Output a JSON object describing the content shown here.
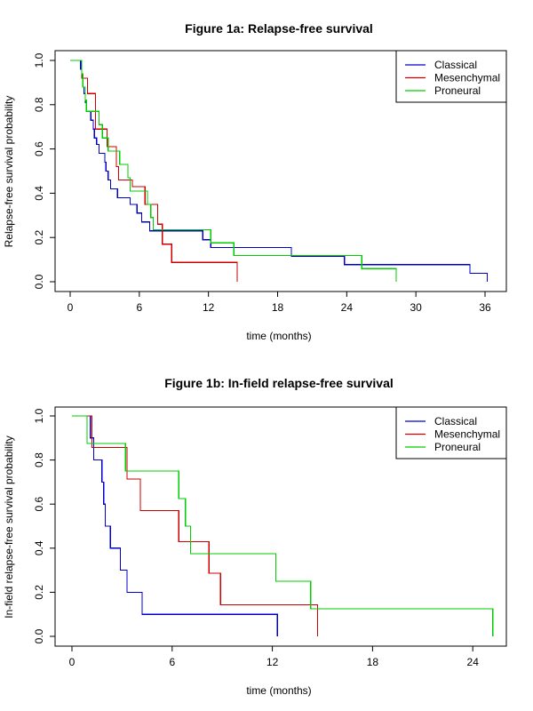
{
  "chart_data": [
    {
      "type": "line",
      "subtype": "kaplan-meier-step",
      "title": "Figure 1a: Relapse-free survival",
      "xlabel": "time (months)",
      "ylabel": "Relapse-free survival probability",
      "xlim": [
        0,
        36
      ],
      "ylim": [
        0,
        1
      ],
      "xticks": [
        0,
        6,
        12,
        18,
        24,
        30,
        36
      ],
      "yticks": [
        0.0,
        0.2,
        0.4,
        0.6,
        0.8,
        1.0
      ],
      "ytick_labels": [
        "0.0",
        "0.2",
        "0.4",
        "0.6",
        "0.8",
        "1.0"
      ],
      "legend_position": "top-right",
      "series": [
        {
          "name": "Classical",
          "color": "#0000CD",
          "points": [
            [
              0,
              1.0
            ],
            [
              0.9,
              1.0
            ],
            [
              0.9,
              0.96
            ],
            [
              1.0,
              0.96
            ],
            [
              1.0,
              0.92
            ],
            [
              1.1,
              0.92
            ],
            [
              1.1,
              0.88
            ],
            [
              1.2,
              0.88
            ],
            [
              1.2,
              0.85
            ],
            [
              1.3,
              0.85
            ],
            [
              1.3,
              0.81
            ],
            [
              1.4,
              0.81
            ],
            [
              1.4,
              0.77
            ],
            [
              1.8,
              0.77
            ],
            [
              1.8,
              0.73
            ],
            [
              2.0,
              0.73
            ],
            [
              2.0,
              0.69
            ],
            [
              2.1,
              0.69
            ],
            [
              2.1,
              0.65
            ],
            [
              2.3,
              0.65
            ],
            [
              2.3,
              0.62
            ],
            [
              2.5,
              0.62
            ],
            [
              2.5,
              0.58
            ],
            [
              3.0,
              0.58
            ],
            [
              3.0,
              0.54
            ],
            [
              3.1,
              0.54
            ],
            [
              3.1,
              0.5
            ],
            [
              3.3,
              0.5
            ],
            [
              3.3,
              0.46
            ],
            [
              3.5,
              0.46
            ],
            [
              3.5,
              0.42
            ],
            [
              4.1,
              0.42
            ],
            [
              4.1,
              0.38
            ],
            [
              5.2,
              0.38
            ],
            [
              5.2,
              0.35
            ],
            [
              5.8,
              0.35
            ],
            [
              5.8,
              0.31
            ],
            [
              6.2,
              0.31
            ],
            [
              6.2,
              0.27
            ],
            [
              6.9,
              0.27
            ],
            [
              6.9,
              0.23
            ],
            [
              11.5,
              0.23
            ],
            [
              11.5,
              0.19
            ],
            [
              12.2,
              0.19
            ],
            [
              12.2,
              0.155
            ],
            [
              19.2,
              0.155
            ],
            [
              19.2,
              0.115
            ],
            [
              23.8,
              0.115
            ],
            [
              23.8,
              0.077
            ],
            [
              34.7,
              0.077
            ],
            [
              34.7,
              0.038
            ],
            [
              36.2,
              0.038
            ],
            [
              36.2,
              0.0
            ]
          ]
        },
        {
          "name": "Mesenchymal",
          "color": "#CD0000",
          "points": [
            [
              0,
              1.0
            ],
            [
              1.0,
              1.0
            ],
            [
              1.0,
              0.92
            ],
            [
              1.5,
              0.92
            ],
            [
              1.5,
              0.85
            ],
            [
              2.2,
              0.85
            ],
            [
              2.2,
              0.69
            ],
            [
              3.2,
              0.69
            ],
            [
              3.2,
              0.61
            ],
            [
              4.0,
              0.61
            ],
            [
              4.0,
              0.52
            ],
            [
              4.2,
              0.52
            ],
            [
              4.2,
              0.46
            ],
            [
              5.4,
              0.46
            ],
            [
              5.4,
              0.43
            ],
            [
              6.5,
              0.43
            ],
            [
              6.5,
              0.35
            ],
            [
              7.6,
              0.35
            ],
            [
              7.6,
              0.26
            ],
            [
              8.0,
              0.26
            ],
            [
              8.0,
              0.17
            ],
            [
              8.8,
              0.17
            ],
            [
              8.8,
              0.087
            ],
            [
              14.5,
              0.087
            ],
            [
              14.5,
              0.0
            ]
          ]
        },
        {
          "name": "Proneural",
          "color": "#00CD00",
          "points": [
            [
              0,
              1.0
            ],
            [
              1.0,
              1.0
            ],
            [
              1.0,
              0.94
            ],
            [
              1.1,
              0.94
            ],
            [
              1.1,
              0.88
            ],
            [
              1.3,
              0.88
            ],
            [
              1.3,
              0.82
            ],
            [
              1.4,
              0.82
            ],
            [
              1.4,
              0.77
            ],
            [
              2.5,
              0.77
            ],
            [
              2.5,
              0.71
            ],
            [
              2.8,
              0.71
            ],
            [
              2.8,
              0.65
            ],
            [
              3.3,
              0.65
            ],
            [
              3.3,
              0.59
            ],
            [
              4.3,
              0.59
            ],
            [
              4.3,
              0.53
            ],
            [
              5.0,
              0.53
            ],
            [
              5.0,
              0.47
            ],
            [
              5.2,
              0.47
            ],
            [
              5.2,
              0.41
            ],
            [
              6.7,
              0.41
            ],
            [
              6.7,
              0.35
            ],
            [
              7.0,
              0.35
            ],
            [
              7.0,
              0.29
            ],
            [
              7.2,
              0.29
            ],
            [
              7.2,
              0.235
            ],
            [
              12.2,
              0.235
            ],
            [
              12.2,
              0.176
            ],
            [
              14.2,
              0.176
            ],
            [
              14.2,
              0.118
            ],
            [
              25.3,
              0.118
            ],
            [
              25.3,
              0.059
            ],
            [
              28.3,
              0.059
            ],
            [
              28.3,
              0.0
            ]
          ]
        }
      ]
    },
    {
      "type": "line",
      "subtype": "kaplan-meier-step",
      "title": "Figure 1b: In-field relapse-free survival",
      "xlabel": "time (months)",
      "ylabel": "In-field relapse-free survival probability",
      "xlim": [
        0,
        25
      ],
      "ylim": [
        0,
        1
      ],
      "xticks": [
        0,
        6,
        12,
        18,
        24
      ],
      "yticks": [
        0.0,
        0.2,
        0.4,
        0.6,
        0.8,
        1.0
      ],
      "ytick_labels": [
        "0.0",
        "0.2",
        "0.4",
        "0.6",
        "0.8",
        "1.0"
      ],
      "legend_position": "top-right",
      "series": [
        {
          "name": "Classical",
          "color": "#0000CD",
          "points": [
            [
              0,
              1.0
            ],
            [
              1.1,
              1.0
            ],
            [
              1.1,
              0.9
            ],
            [
              1.3,
              0.9
            ],
            [
              1.3,
              0.8
            ],
            [
              1.8,
              0.8
            ],
            [
              1.8,
              0.7
            ],
            [
              1.9,
              0.7
            ],
            [
              1.9,
              0.6
            ],
            [
              2.0,
              0.6
            ],
            [
              2.0,
              0.5
            ],
            [
              2.3,
              0.5
            ],
            [
              2.3,
              0.4
            ],
            [
              2.9,
              0.4
            ],
            [
              2.9,
              0.3
            ],
            [
              3.3,
              0.3
            ],
            [
              3.3,
              0.2
            ],
            [
              4.2,
              0.2
            ],
            [
              4.2,
              0.1
            ],
            [
              12.3,
              0.1
            ],
            [
              12.3,
              0.0
            ]
          ]
        },
        {
          "name": "Mesenchymal",
          "color": "#CD0000",
          "points": [
            [
              0,
              1.0
            ],
            [
              1.2,
              1.0
            ],
            [
              1.2,
              0.857
            ],
            [
              3.3,
              0.857
            ],
            [
              3.3,
              0.714
            ],
            [
              4.1,
              0.714
            ],
            [
              4.1,
              0.571
            ],
            [
              6.4,
              0.571
            ],
            [
              6.4,
              0.429
            ],
            [
              8.2,
              0.429
            ],
            [
              8.2,
              0.286
            ],
            [
              8.9,
              0.286
            ],
            [
              8.9,
              0.143
            ],
            [
              14.7,
              0.143
            ],
            [
              14.7,
              0.0
            ]
          ]
        },
        {
          "name": "Proneural",
          "color": "#00CD00",
          "points": [
            [
              0,
              1.0
            ],
            [
              0.9,
              1.0
            ],
            [
              0.9,
              0.875
            ],
            [
              3.2,
              0.875
            ],
            [
              3.2,
              0.75
            ],
            [
              6.4,
              0.75
            ],
            [
              6.4,
              0.625
            ],
            [
              6.8,
              0.625
            ],
            [
              6.8,
              0.5
            ],
            [
              7.1,
              0.5
            ],
            [
              7.1,
              0.375
            ],
            [
              12.2,
              0.375
            ],
            [
              12.2,
              0.25
            ],
            [
              14.3,
              0.25
            ],
            [
              14.3,
              0.125
            ],
            [
              25.2,
              0.125
            ],
            [
              25.2,
              0.0
            ]
          ]
        }
      ]
    }
  ]
}
